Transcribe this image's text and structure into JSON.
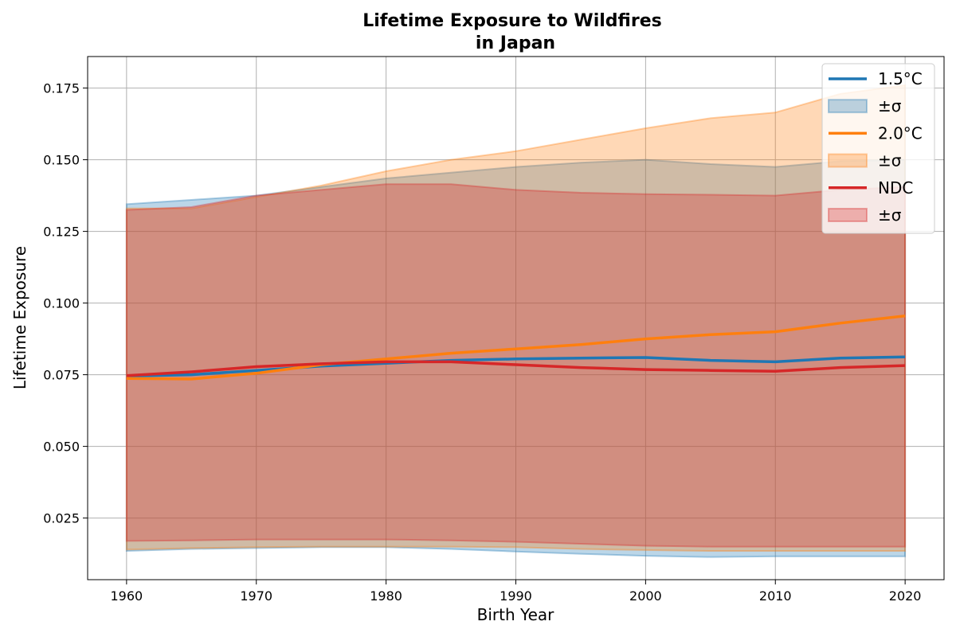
{
  "chart_data": {
    "type": "line",
    "title_line1": "Lifetime Exposure to Wildfires",
    "title_line2": "in Japan",
    "xlabel": "Birth Year",
    "ylabel": "Lifetime Exposure",
    "xlim": [
      1957,
      2023
    ],
    "ylim": [
      0.0035,
      0.186
    ],
    "xticks": [
      1960,
      1970,
      1980,
      1990,
      2000,
      2010,
      2020
    ],
    "xtick_labels": [
      "1960",
      "1970",
      "1980",
      "1990",
      "2000",
      "2010",
      "2020"
    ],
    "yticks": [
      0.025,
      0.05,
      0.075,
      0.1,
      0.125,
      0.15,
      0.175
    ],
    "ytick_labels": [
      "0.025",
      "0.050",
      "0.075",
      "0.100",
      "0.125",
      "0.150",
      "0.175"
    ],
    "grid": true,
    "legend_position": "top-right",
    "x": [
      1960,
      1965,
      1970,
      1975,
      1980,
      1985,
      1990,
      1995,
      2000,
      2005,
      2010,
      2015,
      2020
    ],
    "series": [
      {
        "name": "1.5°C",
        "band_label": "±σ",
        "color": "#1f77b4",
        "values": [
          0.0745,
          0.075,
          0.0765,
          0.078,
          0.079,
          0.08,
          0.0805,
          0.0808,
          0.081,
          0.08,
          0.0795,
          0.0808,
          0.0812
        ],
        "upper": [
          0.1345,
          0.136,
          0.1375,
          0.1405,
          0.1435,
          0.1455,
          0.1475,
          0.149,
          0.15,
          0.1485,
          0.1475,
          0.1495,
          0.15
        ],
        "lower": [
          0.0135,
          0.0142,
          0.0145,
          0.0148,
          0.0148,
          0.0142,
          0.0133,
          0.0125,
          0.0118,
          0.0114,
          0.0116,
          0.0116,
          0.0116
        ]
      },
      {
        "name": "2.0°C",
        "band_label": "±σ",
        "color": "#ff7f0e",
        "values": [
          0.0737,
          0.0735,
          0.0755,
          0.0785,
          0.0805,
          0.0825,
          0.084,
          0.0855,
          0.0875,
          0.089,
          0.09,
          0.093,
          0.0955
        ],
        "upper": [
          0.133,
          0.133,
          0.137,
          0.141,
          0.146,
          0.15,
          0.153,
          0.157,
          0.161,
          0.1645,
          0.1665,
          0.173,
          0.176
        ],
        "lower": [
          0.014,
          0.0145,
          0.0148,
          0.015,
          0.015,
          0.015,
          0.0148,
          0.0142,
          0.0138,
          0.0135,
          0.0135,
          0.0135,
          0.0135
        ]
      },
      {
        "name": "NDC",
        "band_label": "±σ",
        "color": "#d62728",
        "values": [
          0.0747,
          0.076,
          0.0778,
          0.0788,
          0.0795,
          0.0795,
          0.0785,
          0.0775,
          0.0768,
          0.0765,
          0.0762,
          0.0775,
          0.0782
        ],
        "upper": [
          0.1325,
          0.1335,
          0.1375,
          0.1395,
          0.1415,
          0.1415,
          0.1395,
          0.1385,
          0.138,
          0.1378,
          0.1375,
          0.1395,
          0.1405
        ],
        "lower": [
          0.017,
          0.0172,
          0.0175,
          0.0175,
          0.0175,
          0.0172,
          0.0167,
          0.016,
          0.0153,
          0.015,
          0.015,
          0.015,
          0.015
        ]
      }
    ]
  }
}
